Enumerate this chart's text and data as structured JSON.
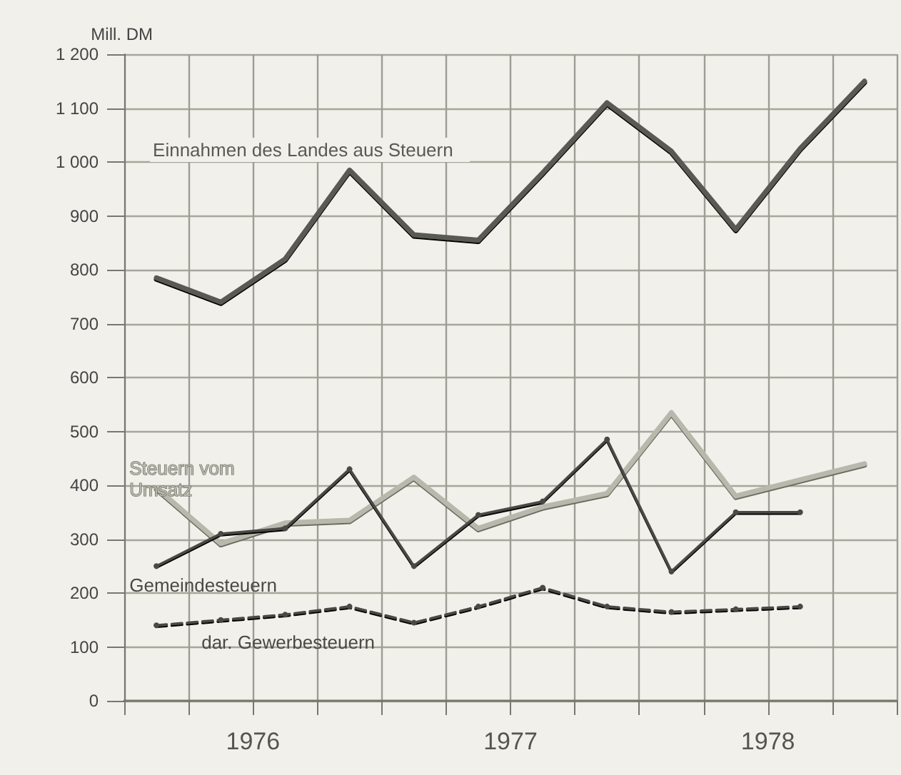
{
  "chart_data": {
    "type": "line",
    "ylabel": "Mill. DM",
    "x": [
      1976.125,
      1976.375,
      1976.625,
      1976.875,
      1977.125,
      1977.375,
      1977.625,
      1977.875,
      1978.125,
      1978.375,
      1978.625,
      1978.875
    ],
    "xlim": [
      1976,
      1979
    ],
    "xticks": [
      {
        "value": 1976,
        "label": null
      },
      {
        "value": 1976.25,
        "label": null
      },
      {
        "value": 1976.5,
        "label": "1976"
      },
      {
        "value": 1976.75,
        "label": null
      },
      {
        "value": 1977,
        "label": null
      },
      {
        "value": 1977.25,
        "label": null
      },
      {
        "value": 1977.5,
        "label": "1977"
      },
      {
        "value": 1977.75,
        "label": null
      },
      {
        "value": 1978,
        "label": null
      },
      {
        "value": 1978.25,
        "label": null
      },
      {
        "value": 1978.5,
        "label": "1978"
      },
      {
        "value": 1978.75,
        "label": null
      },
      {
        "value": 1979,
        "label": null
      }
    ],
    "ylim": [
      0,
      1200
    ],
    "yticks": [
      0,
      100,
      200,
      300,
      400,
      500,
      600,
      700,
      800,
      900,
      {
        "value": 1000,
        "label": "1 000"
      },
      {
        "value": 1100,
        "label": "1 100"
      },
      {
        "value": 1200,
        "label": "1 200"
      }
    ],
    "grid": true,
    "legend": false,
    "series": [
      {
        "name": "Einnahmen des Landes aus Steuern",
        "color": "#5a5a55",
        "marker": "none",
        "line_style": "solid",
        "values": [
          785,
          740,
          820,
          985,
          865,
          855,
          980,
          1110,
          1020,
          875,
          1025,
          1150
        ]
      },
      {
        "name": "Steuern vom Umsatz",
        "color": "#b8b8ac",
        "marker": "none",
        "line_style": "solid",
        "values": [
          395,
          292,
          330,
          335,
          415,
          320,
          360,
          385,
          535,
          380,
          410,
          440
        ]
      },
      {
        "name": "Gemeindesteuern",
        "color": "#4a4a45",
        "marker": "circle",
        "line_style": "solid",
        "values": [
          250,
          310,
          320,
          430,
          250,
          345,
          370,
          485,
          240,
          350,
          350,
          null
        ]
      },
      {
        "name": "dar. Gewerbesteuern",
        "color": "#4a4a45",
        "marker": "circle",
        "line_style": "dashed",
        "values": [
          140,
          150,
          160,
          175,
          145,
          175,
          210,
          175,
          165,
          170,
          175,
          null
        ]
      }
    ]
  }
}
